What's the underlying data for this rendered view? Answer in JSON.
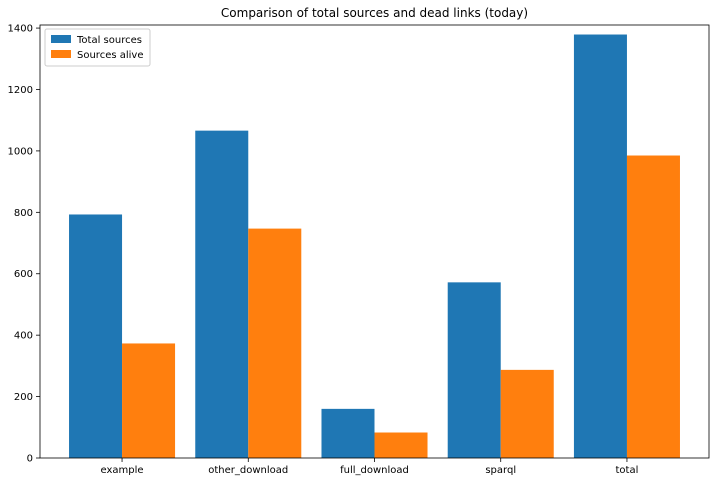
{
  "chart_data": {
    "type": "bar",
    "title": "Comparison of total sources and dead links (today)",
    "xlabel": "",
    "ylabel": "",
    "categories": [
      "example",
      "other_download",
      "full_download",
      "sparql",
      "total"
    ],
    "series": [
      {
        "name": "Total sources",
        "color": "#1f77b4",
        "values": [
          793,
          1066,
          160,
          572,
          1379
        ]
      },
      {
        "name": "Sources alive",
        "color": "#ff7f0e",
        "values": [
          373,
          747,
          83,
          287,
          985
        ]
      }
    ],
    "ylim": [
      0,
      1410
    ],
    "yticks": [
      0,
      200,
      400,
      600,
      800,
      1000,
      1200,
      1400
    ],
    "grid": false,
    "legend_position": "top-left"
  }
}
